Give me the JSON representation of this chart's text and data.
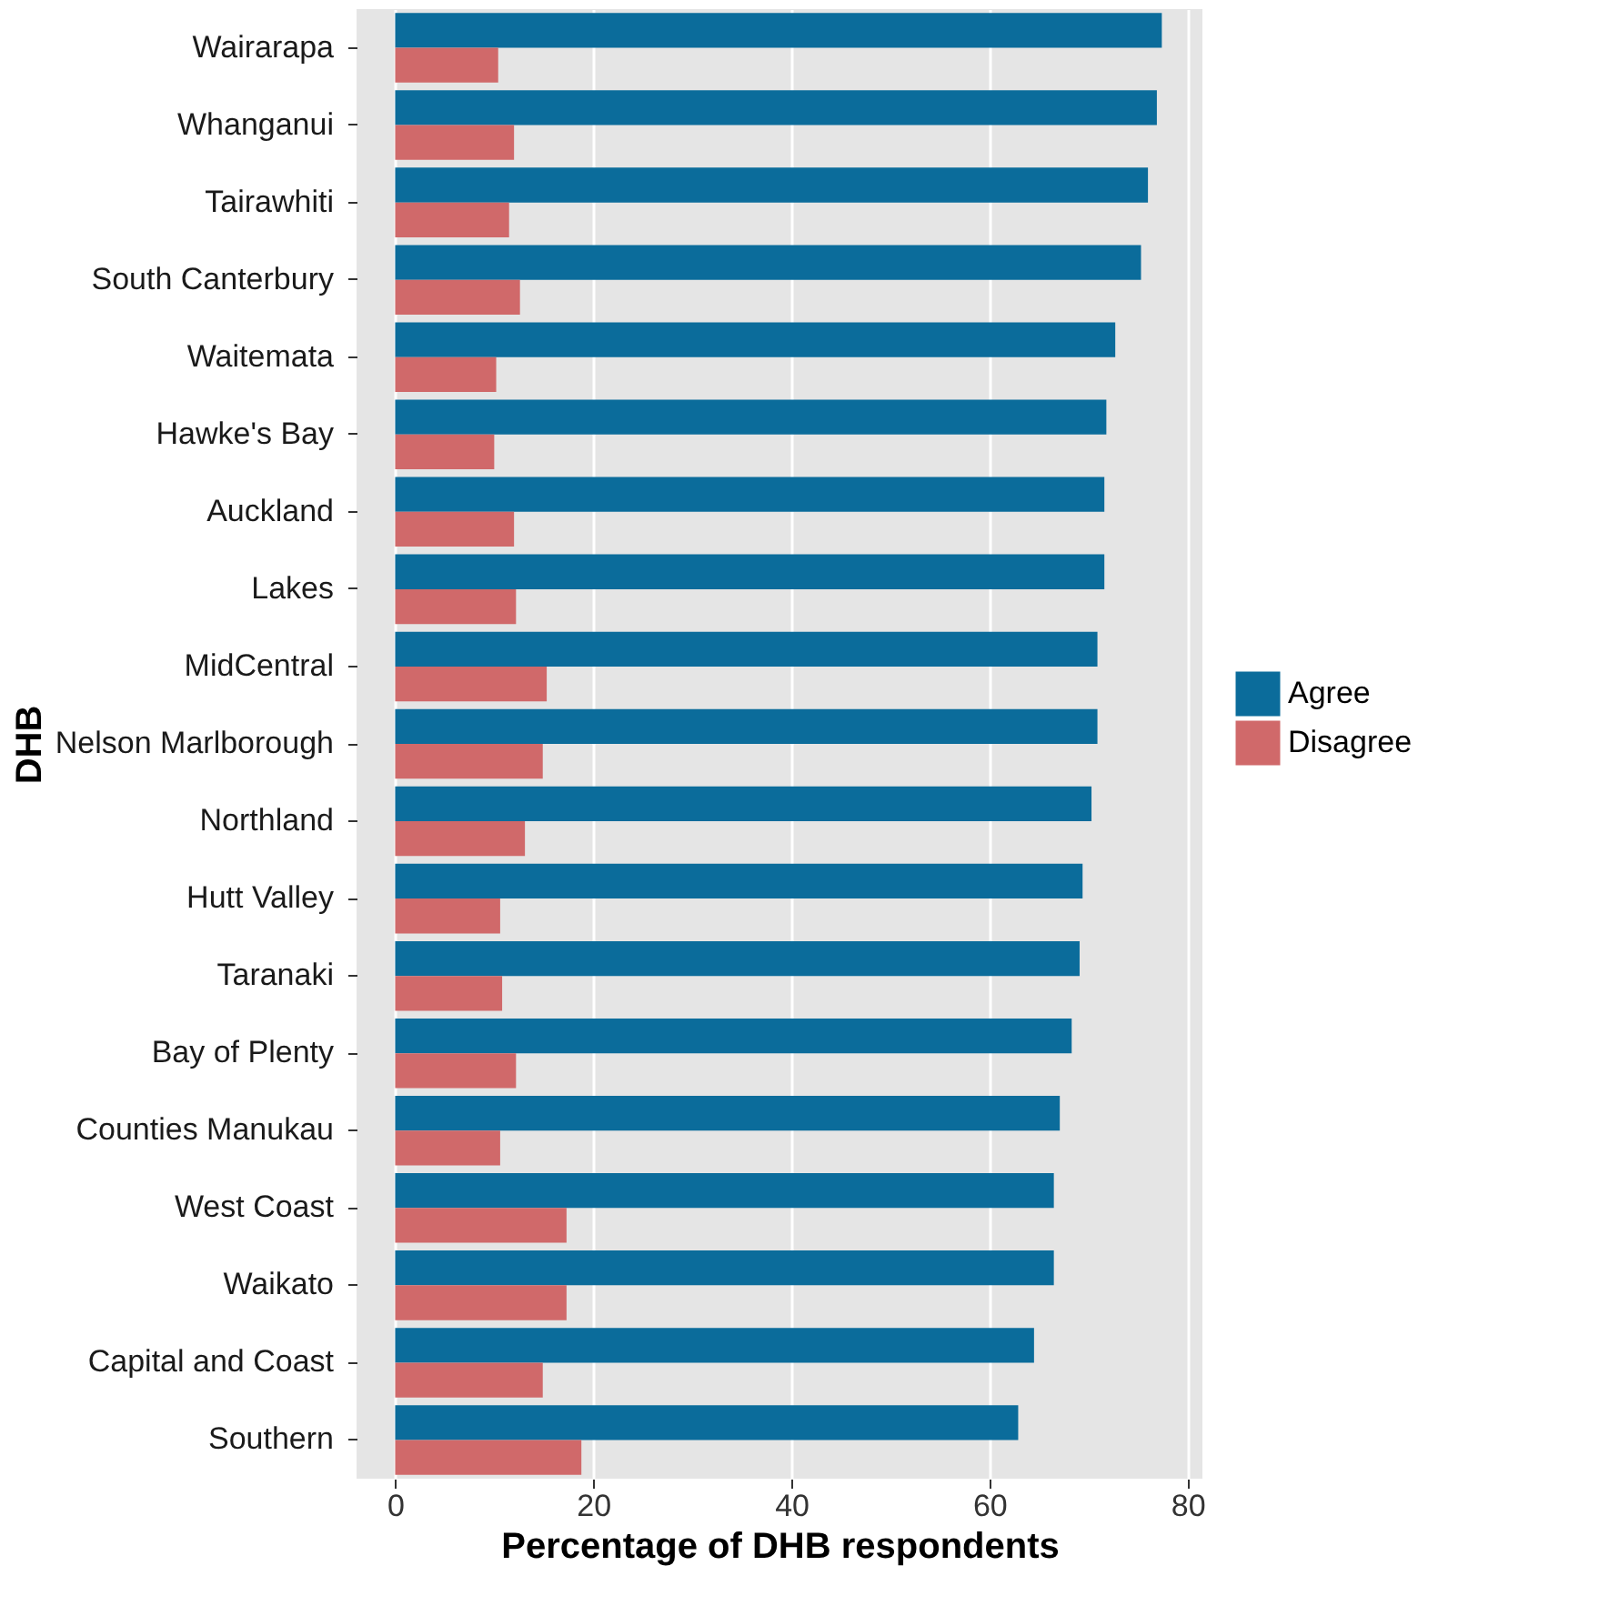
{
  "chart_data": {
    "type": "bar",
    "orientation": "horizontal",
    "xlabel": "Percentage of DHB respondents",
    "ylabel": "DHB",
    "categories": [
      "Wairarapa",
      "Whanganui",
      "Tairawhiti",
      "South Canterbury",
      "Waitemata",
      "Hawke's Bay",
      "Auckland",
      "Lakes",
      "MidCentral",
      "Nelson Marlborough",
      "Northland",
      "Hutt Valley",
      "Taranaki",
      "Bay of Plenty",
      "Counties Manukau",
      "West Coast",
      "Waikato",
      "Capital and Coast",
      "Southern"
    ],
    "series": [
      {
        "name": "Agree",
        "color": "#0b6c9b",
        "values": [
          77.4,
          76.9,
          76.0,
          75.3,
          72.7,
          71.8,
          71.6,
          71.6,
          70.9,
          70.9,
          70.3,
          69.4,
          69.1,
          68.3,
          67.1,
          66.5,
          66.5,
          64.5,
          62.9
        ]
      },
      {
        "name": "Disagree",
        "color": "#d0696a",
        "values": [
          10.4,
          12.0,
          11.5,
          12.6,
          10.2,
          10.0,
          12.0,
          12.2,
          15.3,
          14.9,
          13.1,
          10.6,
          10.8,
          12.2,
          10.6,
          17.3,
          17.3,
          14.9,
          18.8
        ]
      }
    ],
    "xlim": [
      -3.9,
      81.5
    ],
    "xticks": [
      0,
      20,
      40,
      60,
      80
    ],
    "grid": true,
    "legend": "right"
  }
}
